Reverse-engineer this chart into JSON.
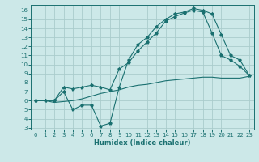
{
  "bg_color": "#cce8e8",
  "line_color": "#1a7070",
  "grid_color": "#aacccc",
  "xlabel": "Humidex (Indice chaleur)",
  "xlim": [
    -0.5,
    23.5
  ],
  "ylim": [
    2.8,
    16.6
  ],
  "yticks": [
    3,
    4,
    5,
    6,
    7,
    8,
    9,
    10,
    11,
    12,
    13,
    14,
    15,
    16
  ],
  "xticks": [
    0,
    1,
    2,
    3,
    4,
    5,
    6,
    7,
    8,
    9,
    10,
    11,
    12,
    13,
    14,
    15,
    16,
    17,
    18,
    19,
    20,
    21,
    22,
    23
  ],
  "line1_x": [
    0,
    1,
    2,
    3,
    4,
    5,
    6,
    7,
    8,
    9,
    10,
    11,
    12,
    13,
    14,
    15,
    16,
    17,
    18,
    19,
    20,
    21,
    22,
    23
  ],
  "line1_y": [
    6.0,
    6.0,
    6.0,
    7.0,
    5.0,
    5.5,
    5.5,
    3.2,
    3.5,
    7.5,
    10.5,
    12.2,
    13.0,
    14.2,
    15.0,
    15.6,
    15.8,
    16.2,
    16.0,
    15.6,
    13.3,
    11.0,
    10.5,
    8.8
  ],
  "line2_x": [
    0,
    1,
    2,
    3,
    4,
    5,
    6,
    7,
    8,
    9,
    10,
    11,
    12,
    13,
    14,
    15,
    16,
    17,
    18,
    19,
    20,
    21,
    22,
    23
  ],
  "line2_y": [
    6.0,
    6.0,
    5.8,
    5.9,
    6.0,
    6.2,
    6.5,
    6.8,
    7.0,
    7.2,
    7.5,
    7.7,
    7.8,
    8.0,
    8.2,
    8.3,
    8.4,
    8.5,
    8.6,
    8.6,
    8.5,
    8.5,
    8.5,
    8.7
  ],
  "line3_x": [
    0,
    1,
    2,
    3,
    4,
    5,
    6,
    7,
    8,
    9,
    10,
    11,
    12,
    13,
    14,
    15,
    16,
    17,
    18,
    19,
    20,
    21,
    22,
    23
  ],
  "line3_y": [
    6.0,
    6.0,
    6.0,
    7.5,
    7.3,
    7.5,
    7.7,
    7.5,
    7.2,
    9.5,
    10.2,
    11.5,
    12.5,
    13.5,
    14.8,
    15.3,
    15.7,
    16.0,
    15.8,
    13.5,
    11.0,
    10.5,
    9.8,
    8.8
  ],
  "tick_fontsize": 5.0,
  "xlabel_fontsize": 6.0
}
